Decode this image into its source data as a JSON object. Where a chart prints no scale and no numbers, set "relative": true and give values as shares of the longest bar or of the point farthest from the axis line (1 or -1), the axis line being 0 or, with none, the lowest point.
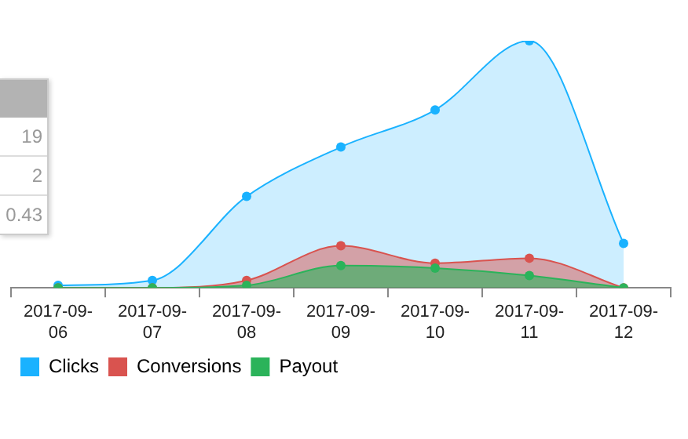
{
  "chart_data": {
    "type": "area",
    "relative": true,
    "categories": [
      "2017-09-06",
      "2017-09-07",
      "2017-09-08",
      "2017-09-09",
      "2017-09-10",
      "2017-09-11",
      "2017-09-12"
    ],
    "series": [
      {
        "name": "Clicks",
        "color": "#1ab2ff",
        "values": [
          0.01,
          0.03,
          0.37,
          0.57,
          0.72,
          1,
          0.18
        ]
      },
      {
        "name": "Conversions",
        "color": "#d9534f",
        "values": [
          0,
          0,
          0.03,
          0.17,
          0.1,
          0.12,
          0
        ]
      },
      {
        "name": "Payout",
        "color": "#2bb35a",
        "values": [
          0,
          0,
          0.01,
          0.09,
          0.08,
          0.05,
          0
        ]
      }
    ],
    "legend": "bottom",
    "marker": "circle",
    "annotations": [
      "19",
      "2",
      "0.43"
    ]
  }
}
